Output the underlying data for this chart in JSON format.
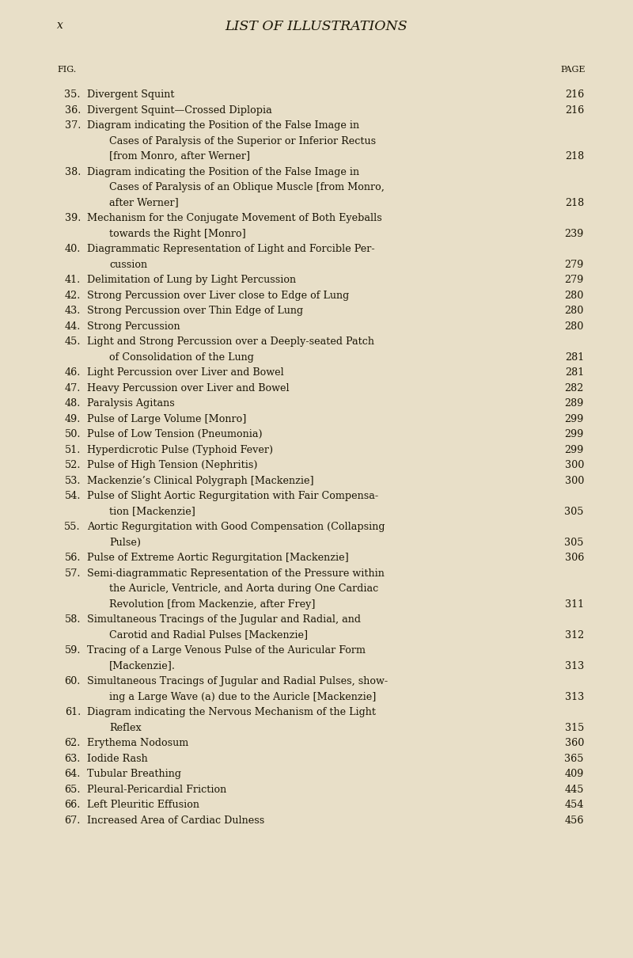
{
  "bg_color": "#e8dfc8",
  "text_color": "#1a1505",
  "page_label": "x",
  "title": "LIST OF ILLUSTRATIONS",
  "col_fig": "FIG.",
  "col_page": "PAGE",
  "entries": [
    {
      "num": "35.",
      "lines": [
        [
          "Divergent Squint",
          " . . . . . . . 216"
        ]
      ],
      "page": "216"
    },
    {
      "num": "36.",
      "lines": [
        [
          "Divergent Squint—Crossed Diplopia",
          " . . . . . 216"
        ]
      ],
      "page": "216"
    },
    {
      "num": "37.",
      "lines": [
        [
          "Diagram indicating the Position of the False Image in",
          null
        ],
        [
          "Cases of Paralysis of the Superior or Inferior Rectus",
          null
        ],
        [
          "[from Monro, after Werner]",
          " . . . . . . 218"
        ]
      ],
      "page": "218"
    },
    {
      "num": "38.",
      "lines": [
        [
          "Diagram indicating the Position of the False Image in",
          null
        ],
        [
          "Cases of Paralysis of an Oblique Muscle [from Monro,",
          null
        ],
        [
          "after Werner]",
          " . . . . . . . . 218"
        ]
      ],
      "page": "218"
    },
    {
      "num": "39.",
      "lines": [
        [
          "Mechanism for the Conjugate Movement of Both Eyeballs",
          null
        ],
        [
          "towards the Right [Monro]",
          " . . . . . . 239"
        ]
      ],
      "page": "239"
    },
    {
      "num": "40.",
      "lines": [
        [
          "Diagrammatic Representation of Light and Forcible Per-",
          null
        ],
        [
          "cussion",
          " . . . . . . . . 279"
        ]
      ],
      "page": "279"
    },
    {
      "num": "41.",
      "lines": [
        [
          "Delimitation of Lung by Light Percussion",
          " . . . 279"
        ]
      ],
      "page": "279"
    },
    {
      "num": "42.",
      "lines": [
        [
          "Strong Percussion over Liver close to Edge of Lung",
          " . 280"
        ]
      ],
      "page": "280"
    },
    {
      "num": "43.",
      "lines": [
        [
          "Strong Percussion over Thin Edge of Lung",
          " . . . 280"
        ]
      ],
      "page": "280"
    },
    {
      "num": "44.",
      "lines": [
        [
          "Strong Percussion",
          " . . . . . . . 280"
        ]
      ],
      "page": "280"
    },
    {
      "num": "45.",
      "lines": [
        [
          "Light and Strong Percussion over a Deeply-seated Patch",
          null
        ],
        [
          "of Consolidation of the Lung",
          " . . . . . 281"
        ]
      ],
      "page": "281"
    },
    {
      "num": "46.",
      "lines": [
        [
          "Light Percussion over Liver and Bowel",
          " . . . 281"
        ]
      ],
      "page": "281"
    },
    {
      "num": "47.",
      "lines": [
        [
          "Heavy Percussion over Liver and Bowel",
          " . . . 282"
        ]
      ],
      "page": "282"
    },
    {
      "num": "48.",
      "lines": [
        [
          "Paralysis Agitans",
          " . . . . . . . 289"
        ]
      ],
      "page": "289"
    },
    {
      "num": "49.",
      "lines": [
        [
          "Pulse of Large Volume [Monro]",
          " . . . . . 299"
        ]
      ],
      "page": "299"
    },
    {
      "num": "50.",
      "lines": [
        [
          "Pulse of Low Tension (Pneumonia)",
          " . . . . 299"
        ]
      ],
      "page": "299"
    },
    {
      "num": "51.",
      "lines": [
        [
          "Hyperdicrotic Pulse (Typhoid Fever)",
          " . . . . 299"
        ]
      ],
      "page": "299"
    },
    {
      "num": "52.",
      "lines": [
        [
          "Pulse of High Tension (Nephritis)",
          " . . . . 300"
        ]
      ],
      "page": "300"
    },
    {
      "num": "53.",
      "lines": [
        [
          "Mackenzie’s Clinical Polygraph [Mackenzie]",
          " . . . 300"
        ]
      ],
      "page": "300"
    },
    {
      "num": "54.",
      "lines": [
        [
          "Pulse of Slight Aortic Regurgitation with Fair Compensa-",
          null
        ],
        [
          "tion [Mackenzie]",
          " . . . . . . . 305"
        ]
      ],
      "page": "305"
    },
    {
      "num": "55.",
      "lines": [
        [
          "Aortic Regurgitation with Good Compensation (Collapsing",
          null
        ],
        [
          "Pulse)",
          " . . . . . . . . 305"
        ]
      ],
      "page": "305"
    },
    {
      "num": "56.",
      "lines": [
        [
          "Pulse of Extreme Aortic Regurgitation [Mackenzie]",
          " . 306"
        ]
      ],
      "page": "306"
    },
    {
      "num": "57.",
      "lines": [
        [
          "Semi-diagrammatic Representation of the Pressure within",
          null
        ],
        [
          "the Auricle, Ventricle, and Aorta during One Cardiac",
          null
        ],
        [
          "Revolution [from Mackenzie, after Frey]",
          " . . . 311"
        ]
      ],
      "page": "311"
    },
    {
      "num": "58.",
      "lines": [
        [
          "Simultaneous Tracings of the Jugular and Radial, and",
          null
        ],
        [
          "Carotid and Radial Pulses [Mackenzie]",
          " . . . . 312"
        ]
      ],
      "page": "312"
    },
    {
      "num": "59.",
      "lines": [
        [
          "Tracing of a Large Venous Pulse of the Auricular Form",
          null
        ],
        [
          "[Mackenzie].",
          " . . . . . . . 313"
        ]
      ],
      "page": "313"
    },
    {
      "num": "60.",
      "lines": [
        [
          "Simultaneous Tracings of Jugular and Radial Pulses, show-",
          null
        ],
        [
          "ing a Large Wave (a) due to the Auricle [Mackenzie]",
          " . 313"
        ]
      ],
      "page": "313"
    },
    {
      "num": "61.",
      "lines": [
        [
          "Diagram indicating the Nervous Mechanism of the Light",
          null
        ],
        [
          "Reflex",
          " . . . . . . . . 315"
        ]
      ],
      "page": "315"
    },
    {
      "num": "62.",
      "lines": [
        [
          "Erythema Nodosum",
          " . . . . . . . 360"
        ]
      ],
      "page": "360"
    },
    {
      "num": "63.",
      "lines": [
        [
          "Iodide Rash",
          " . . . . . . . . 365"
        ]
      ],
      "page": "365"
    },
    {
      "num": "64.",
      "lines": [
        [
          "Tubular Breathing",
          " . . . . . . . 409"
        ]
      ],
      "page": "409"
    },
    {
      "num": "65.",
      "lines": [
        [
          "Pleural-Pericardial Friction",
          " . . . . . 445"
        ]
      ],
      "page": "445"
    },
    {
      "num": "66.",
      "lines": [
        [
          "Left Pleuritic Effusion",
          " . . . . . . 454"
        ]
      ],
      "page": "454"
    },
    {
      "num": "67.",
      "lines": [
        [
          "Increased Area of Cardiac Dulness",
          " . . . . 456"
        ]
      ],
      "page": "456"
    }
  ],
  "figsize": [
    8.0,
    12.1
  ],
  "dpi": 100
}
